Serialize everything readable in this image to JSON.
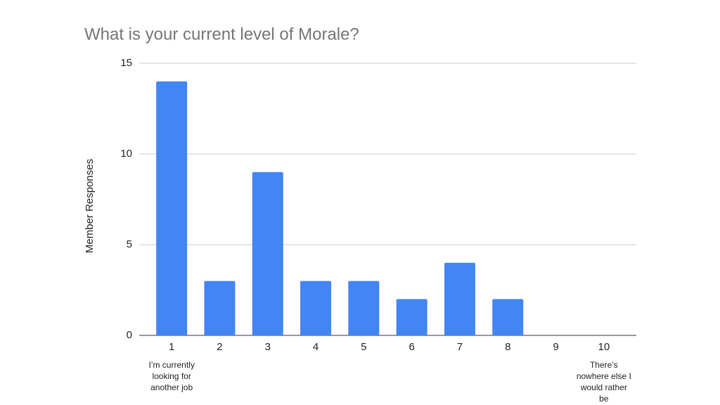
{
  "chart_data": {
    "type": "bar",
    "title": "What is your current level of Morale?",
    "y_label": "Member Responses",
    "categories": [
      "1",
      "2",
      "3",
      "4",
      "5",
      "6",
      "7",
      "8",
      "9",
      "10"
    ],
    "values": [
      14,
      3,
      9,
      3,
      3,
      2,
      4,
      2,
      0,
      0
    ],
    "color": "#4285f4",
    "ylim": [
      0,
      15
    ],
    "yticks": [
      0,
      5,
      10,
      15
    ],
    "grid": true,
    "annotations": [
      {
        "category": "1",
        "text": "I’m currently looking for another job"
      },
      {
        "category": "10",
        "text": "There’s nowhere else I would rather be"
      }
    ]
  }
}
